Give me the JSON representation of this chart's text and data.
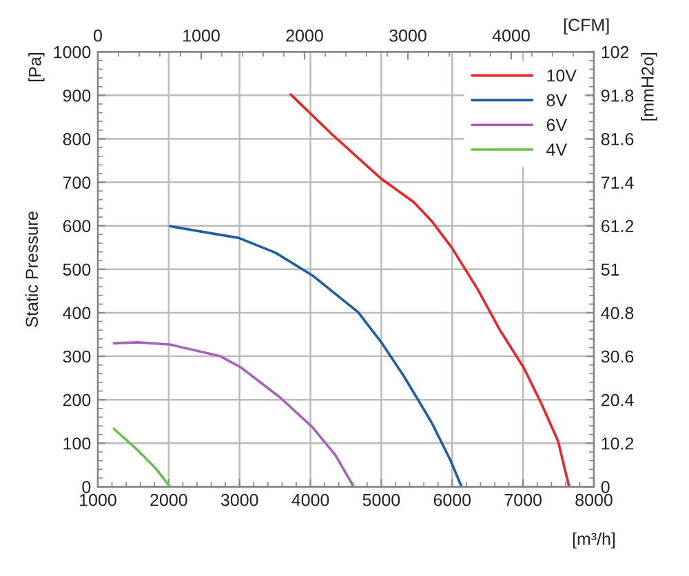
{
  "chart_data": {
    "type": "line",
    "ylabel": "Static Pressure",
    "xlabel": "[m³/h]",
    "y2label": "[mmH2o]",
    "x2label": "[CFM]",
    "annotations": [
      "[Pa]"
    ],
    "xlim": [
      1000,
      8000
    ],
    "xticks": [
      1000,
      2000,
      3000,
      4000,
      5000,
      6000,
      7000,
      8000
    ],
    "ylim": [
      0,
      1000
    ],
    "yticks": [
      0,
      100,
      200,
      300,
      400,
      500,
      600,
      700,
      800,
      900,
      1000
    ],
    "y2lim": [
      0,
      102
    ],
    "y2ticks": [
      0,
      10.2,
      20.4,
      30.6,
      40.8,
      51,
      61.2,
      71.4,
      81.6,
      91.8,
      102
    ],
    "x2lim": [
      0,
      4800
    ],
    "x2ticks": [
      0,
      1000,
      2000,
      3000,
      4000
    ],
    "grid": true,
    "legend": "top right",
    "series": [
      {
        "name": "10V",
        "color": "#e8262a",
        "x": [
          3722,
          4319,
          5000,
          5453,
          5706,
          5997,
          6360,
          6678,
          7008,
          7262,
          7494,
          7650
        ],
        "values": [
          902,
          808,
          708,
          655,
          612,
          549,
          454,
          359,
          274,
          190,
          105,
          0
        ]
      },
      {
        "name": "8V",
        "color": "#1f5fa0",
        "x": [
          2017,
          2989,
          3508,
          4027,
          4675,
          5000,
          5323,
          5712,
          5972,
          6133
        ],
        "values": [
          599,
          572,
          538,
          486,
          401,
          332,
          253,
          147,
          62,
          0
        ]
      },
      {
        "name": "6V",
        "color": "#a565b5",
        "x": [
          1227,
          1564,
          2017,
          2731,
          3022,
          3573,
          4027,
          4351,
          4610
        ],
        "values": [
          330,
          332,
          327,
          300,
          274,
          205,
          137,
          73,
          0
        ]
      },
      {
        "name": "4V",
        "color": "#6cbf4a",
        "x": [
          1227,
          1564,
          1823,
          2017
        ],
        "values": [
          133,
          84,
          41,
          0
        ]
      }
    ]
  }
}
